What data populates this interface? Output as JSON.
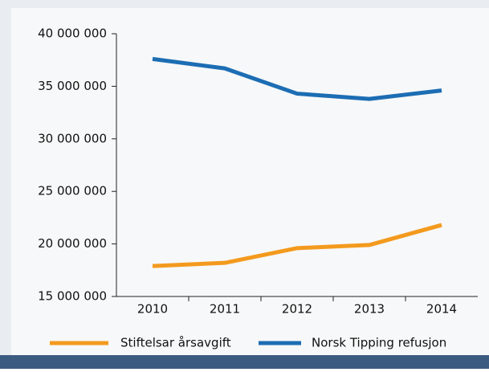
{
  "chart_data": {
    "type": "line",
    "categories": [
      "2010",
      "2011",
      "2012",
      "2013",
      "2014"
    ],
    "series": [
      {
        "name": "Stiftelsar årsavgift",
        "color": "#f39a1e",
        "values": [
          17900000,
          18200000,
          19600000,
          19900000,
          21800000
        ]
      },
      {
        "name": "Norsk Tipping refusjon",
        "color": "#1c6db3",
        "values": [
          37600000,
          36700000,
          34300000,
          33800000,
          34600000
        ]
      }
    ],
    "ylim": [
      15000000,
      40000000
    ],
    "yticks": [
      {
        "value": 15000000,
        "label": "15 000 000"
      },
      {
        "value": 20000000,
        "label": "20 000 000"
      },
      {
        "value": 25000000,
        "label": "25 000 000"
      },
      {
        "value": 30000000,
        "label": "30 000 000"
      },
      {
        "value": 35000000,
        "label": "35 000 000"
      },
      {
        "value": 40000000,
        "label": "40 000 000"
      }
    ]
  }
}
